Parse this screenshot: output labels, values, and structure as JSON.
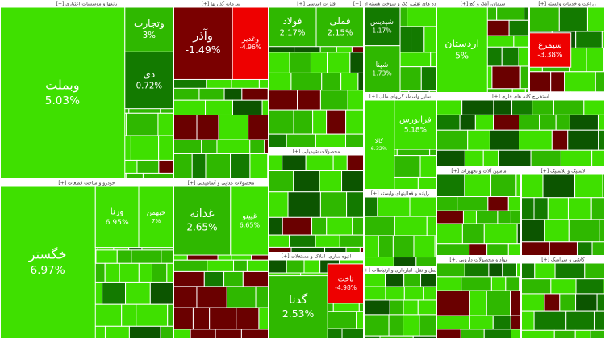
{
  "chart_data": {
    "type": "treemap",
    "sectors": [
      {
        "name": "[+] بانکها و موسسات اعتباری",
        "tiles": [
          "وبملت",
          "وتجارت",
          "دی"
        ],
        "values": [
          5.03,
          3,
          0.72
        ],
        "value_labels": [
          "5.03%",
          "3%",
          "0.72%"
        ]
      },
      {
        "name": "[+] خودرو و ساخت قطعات",
        "tiles": [
          "خگستر",
          "ورنا",
          "خبهمن"
        ],
        "values": [
          6.97,
          6.95,
          7
        ],
        "value_labels": [
          "6.97%",
          "6.95%",
          "7%"
        ]
      },
      {
        "name": "[+] سرمایه گذاریها",
        "tiles": [
          "وآذر",
          "وغدیر"
        ],
        "values": [
          -1.49,
          -4.96
        ],
        "value_labels": [
          "-1.49%",
          "-4.96%"
        ]
      },
      {
        "name": "[+] محصولات غذایی و آشامیدنی",
        "tiles": [
          "غدانه",
          "غپینو"
        ],
        "values": [
          2.65,
          6.65
        ],
        "value_labels": [
          "2.65%",
          "6.65%"
        ]
      },
      {
        "name": "[+] فلزات اساسی",
        "tiles": [
          "فولاد",
          "فملی"
        ],
        "values": [
          2.17,
          2.15
        ],
        "value_labels": [
          "2.17%",
          "2.15%"
        ]
      },
      {
        "name": "[+] محصولات شیمیایی",
        "tiles": [],
        "values": [],
        "value_labels": []
      },
      {
        "name": "[+] انبوه سازی، املاک و مستغلات",
        "tiles": [
          "گدنا",
          "ثاخت"
        ],
        "values": [
          2.53,
          -4.98
        ],
        "value_labels": [
          "2.53%",
          "-4.98%"
        ]
      },
      {
        "name": "[+] فرآورده های نفتی، کک و سوخت هسته ای",
        "tiles": [
          "شپدیس",
          "شپنا"
        ],
        "values": [
          1.17,
          1.73
        ],
        "value_labels": [
          "1.17%",
          "1.73%"
        ]
      },
      {
        "name": "[+] سایر واسطه گریهای مالی",
        "tiles": [
          "کالا",
          "فرابورس"
        ],
        "values": [
          6.32,
          5.18
        ],
        "value_labels": [
          "6.32%",
          "5.18%"
        ]
      },
      {
        "name": "[+] رایانه و فعالیتهای وابسته",
        "tiles": [],
        "values": [],
        "value_labels": []
      },
      {
        "name": "[+] حمل و نقل، انبارداری و ارتباطات",
        "tiles": [],
        "values": [],
        "value_labels": []
      },
      {
        "name": "[+] سیمان، آهک و گچ",
        "tiles": [
          "اردستان"
        ],
        "values": [
          5
        ],
        "value_labels": [
          "5%"
        ]
      },
      {
        "name": "[+] زراعت و خدمات وابسته",
        "tiles": [
          "سیمرغ"
        ],
        "values": [
          -3.38
        ],
        "value_labels": [
          "-3.38%"
        ]
      },
      {
        "name": "[+] استخراج کانه های فلزی",
        "tiles": [],
        "values": [],
        "value_labels": []
      },
      {
        "name": "[+] ماشین آلات و تجهیزات",
        "tiles": [],
        "values": [],
        "value_labels": []
      },
      {
        "name": "[+] لاستیک و پلاستیک",
        "tiles": [],
        "values": [],
        "value_labels": []
      },
      {
        "name": "[+] مواد و محصولات دارویی",
        "tiles": [],
        "values": [],
        "value_labels": []
      },
      {
        "name": "[+] کاشی و سرامیک",
        "tiles": [],
        "values": [],
        "value_labels": []
      }
    ]
  }
}
